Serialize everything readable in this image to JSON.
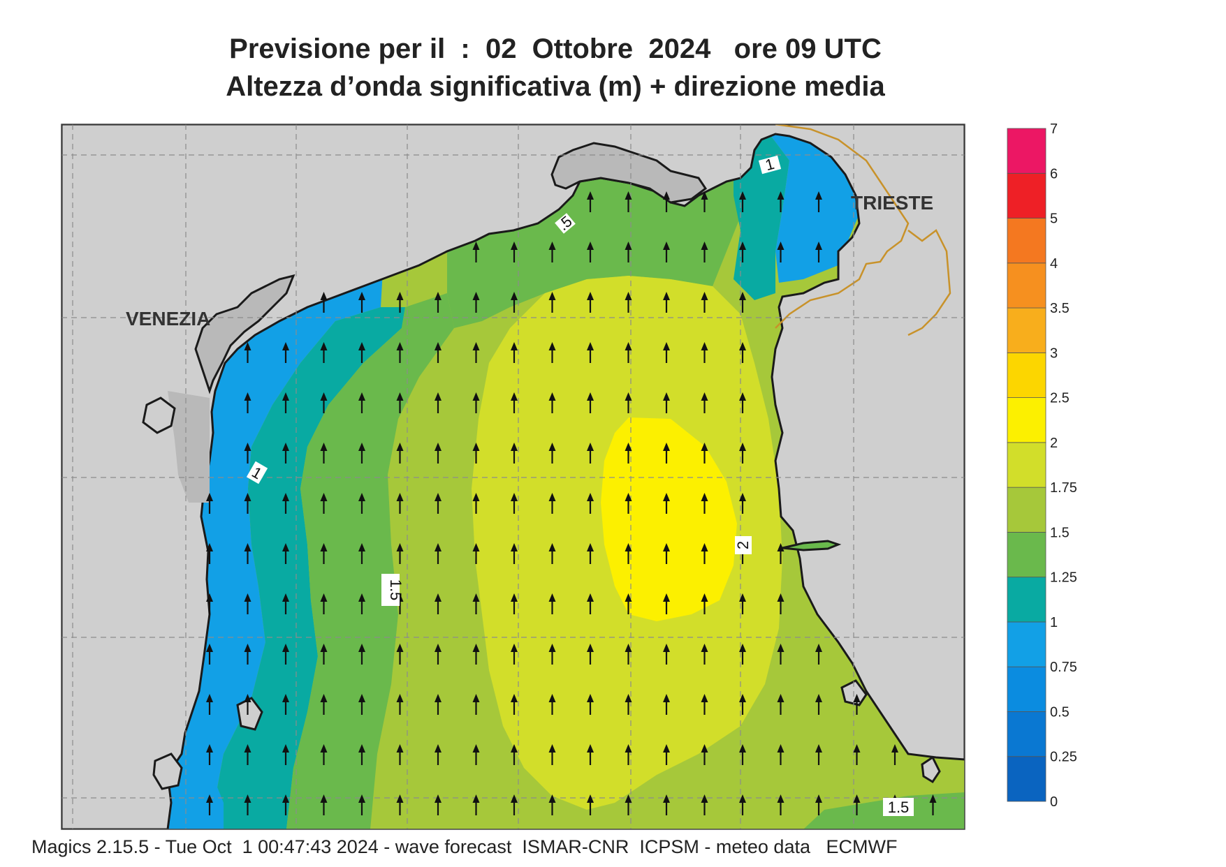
{
  "title_line1": "Previsione per il  :  02  Ottobre  2024   ore 09 UTC",
  "title_line2": "Altezza d’onda significativa (m) + direzione media",
  "footer": "Magics 2.15.5 - Tue Oct  1 00:47:43 2024 - wave forecast  ISMAR-CNR  ICPSM - meteo data   ECMWF",
  "places": {
    "venezia": "VENEZIA",
    "trieste": "TRIESTE"
  },
  "contour_labels": [
    "1",
    "1",
    "1.5",
    "2",
    "1.5",
    ".5"
  ],
  "legend": {
    "ticks": [
      "0",
      "0.25",
      "0.5",
      "0.75",
      "1",
      "1.25",
      "1.5",
      "1.75",
      "2",
      "2.5",
      "3",
      "3.5",
      "4",
      "5",
      "6",
      "7"
    ],
    "colors": [
      "#0a64c0",
      "#0a78d2",
      "#0b8ce0",
      "#12a0e6",
      "#09aaa2",
      "#6ab94c",
      "#a6c83a",
      "#d2de2a",
      "#fcf000",
      "#fcd600",
      "#f8ae1c",
      "#f6901f",
      "#f47820",
      "#ee2026",
      "#ec1764"
    ]
  },
  "colors": {
    "land": "#cfcfcf",
    "land_dark": "#b9b9b9",
    "coast": "#1a1a1a",
    "border": "#c8922a",
    "grid": "#8c8c8c"
  },
  "wave_direction": "north",
  "units": "m"
}
